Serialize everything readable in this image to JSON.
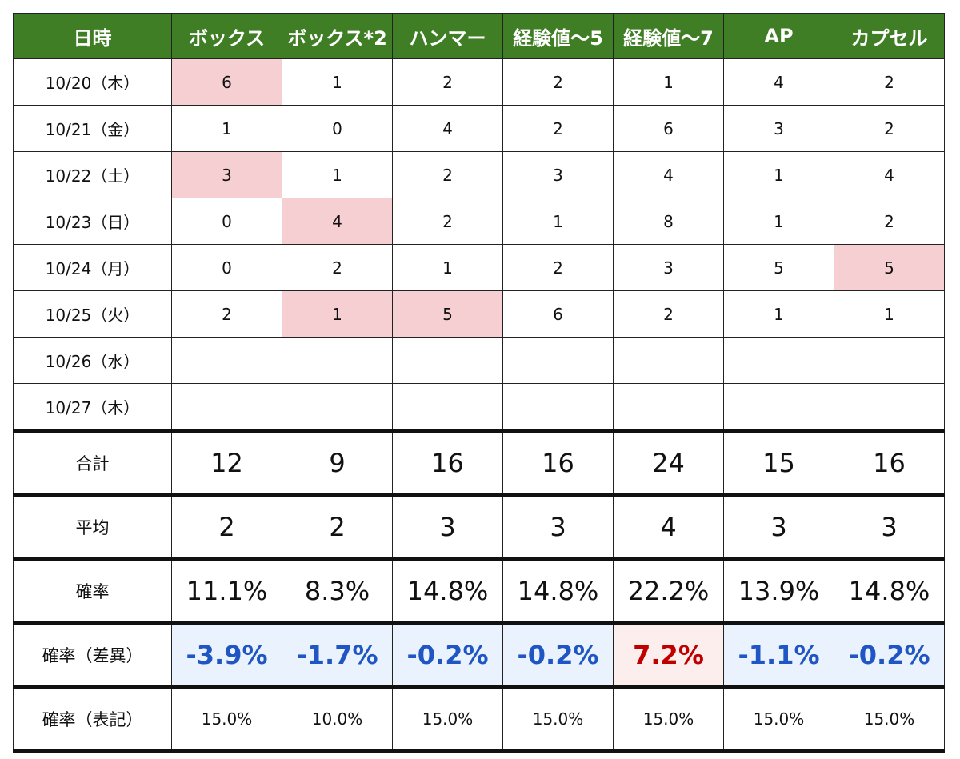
{
  "headers": [
    "日時",
    "ボックス",
    "ボックス*2",
    "ハンマー",
    "経験値〜5",
    "経験値〜7",
    "AP",
    "カプセル"
  ],
  "rows": [
    {
      "date": "10/20（木）",
      "cells": [
        "6",
        "1",
        "2",
        "2",
        "1",
        "4",
        "2"
      ],
      "highlight": [
        0
      ]
    },
    {
      "date": "10/21（金）",
      "cells": [
        "1",
        "0",
        "4",
        "2",
        "6",
        "3",
        "2"
      ],
      "highlight": []
    },
    {
      "date": "10/22（土）",
      "cells": [
        "3",
        "1",
        "2",
        "3",
        "4",
        "1",
        "4"
      ],
      "highlight": [
        0
      ]
    },
    {
      "date": "10/23（日）",
      "cells": [
        "0",
        "4",
        "2",
        "1",
        "8",
        "1",
        "2"
      ],
      "highlight": [
        1
      ]
    },
    {
      "date": "10/24（月）",
      "cells": [
        "0",
        "2",
        "1",
        "2",
        "3",
        "5",
        "5"
      ],
      "highlight": [
        6
      ]
    },
    {
      "date": "10/25（火）",
      "cells": [
        "2",
        "1",
        "5",
        "6",
        "2",
        "1",
        "1"
      ],
      "highlight": [
        1,
        2
      ]
    },
    {
      "date": "10/26（水）",
      "cells": [
        "",
        "",
        "",
        "",
        "",
        "",
        ""
      ],
      "highlight": []
    },
    {
      "date": "10/27（木）",
      "cells": [
        "",
        "",
        "",
        "",
        "",
        "",
        ""
      ],
      "highlight": []
    }
  ],
  "total": {
    "label": "合計",
    "values": [
      "12",
      "9",
      "16",
      "16",
      "24",
      "15",
      "16"
    ]
  },
  "average": {
    "label": "平均",
    "values": [
      "2",
      "2",
      "3",
      "3",
      "4",
      "3",
      "3"
    ]
  },
  "probability": {
    "label": "確率",
    "values": [
      "11.1%",
      "8.3%",
      "14.8%",
      "14.8%",
      "22.2%",
      "13.9%",
      "14.8%"
    ]
  },
  "probability_diff": {
    "label": "確率（差異）",
    "values": [
      "-3.9%",
      "-1.7%",
      "-0.2%",
      "-0.2%",
      "7.2%",
      "-1.1%",
      "-0.2%"
    ]
  },
  "probability_stated": {
    "label": "確率（表記）",
    "values": [
      "15.0%",
      "10.0%",
      "15.0%",
      "15.0%",
      "15.0%",
      "15.0%",
      "15.0%"
    ]
  },
  "colors": {
    "header_bg": "#3f7e25",
    "highlight": "#f5cfd1",
    "negative_text": "#1f56c4",
    "negative_bg": "#eaf3fd",
    "positive_text": "#c00000",
    "positive_bg": "#fdeeee"
  }
}
